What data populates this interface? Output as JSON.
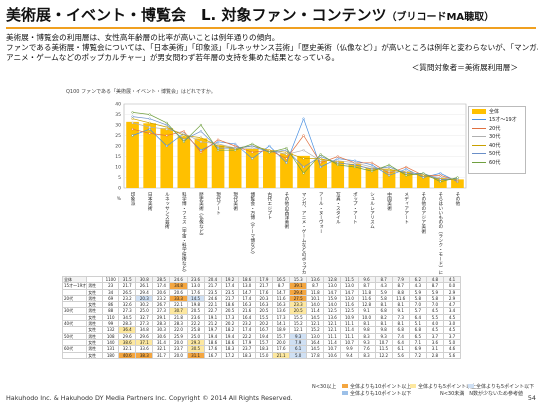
{
  "header": {
    "title": "美術展・イベント・博覧会　L. 対象ファン・コンテンツ",
    "subtitle": "（ブリコードMA聴取）"
  },
  "lead": {
    "line1": "美術展・博覧会の利用層は、女性高年齢層の比率が高いことは例年通りの傾向。",
    "line2": "ファンである美術展・博覧会については、「日本美術」「印象派」「ルネッサンス芸術」「歴史美術（仏像など）」が高いところは例年と変わらないが、「マンガ、",
    "line3": "アニメ・ゲームなどのポップカルチャー」が男女問わず若年層の支持を集めた結果となっている。",
    "respondent": "＜質問対象者＝美術展利用層＞"
  },
  "question": "Q100 ファンである「美術展・イベント・博覧会」はどれですか。",
  "chart_data": {
    "type": "bar",
    "ylim": [
      0,
      40
    ],
    "yticks": [
      0,
      5,
      10,
      15,
      20,
      25,
      30,
      35,
      40
    ],
    "unit": "%",
    "categories": [
      "印象派",
      "日本美術",
      "ルネッサンス芸術",
      "科学博・フェス（宇宙・科学技術など）",
      "歴史美術（仏像など）",
      "現代アート",
      "現代美術",
      "博覧会・万博（テーマ博など）",
      "古代エジプト",
      "その他の西洋美術",
      "マンガ、アニメ・ゲームなどのポップカルチャー",
      "アール・ヌーヴォー",
      "写真・スタイル",
      "ポップ・アート",
      "シュルレアリスム",
      "中国美術",
      "メディアアート",
      "その他のアジア美術",
      "そらはいいものの（ランク・モード）に関する",
      "その他"
    ],
    "bar_series": {
      "name": "全体",
      "values": [
        31.5,
        30.8,
        28.5,
        24.6,
        23.6,
        20.4,
        19.2,
        18.6,
        17.9,
        16.5,
        15.3,
        13.6,
        12.8,
        11.5,
        9.6,
        8.7,
        7.9,
        6.2,
        4.8,
        4.1
      ]
    },
    "line_series": [
      {
        "name": "15才〜19才",
        "color": "#4a90e2",
        "values": [
          25.0,
          28.0,
          20.0,
          26.0,
          18.0,
          22.0,
          21.0,
          14.0,
          20.0,
          12.0,
          33.0,
          10.0,
          14.0,
          13.0,
          11.0,
          6.0,
          9.0,
          5.0,
          7.0,
          3.0
        ]
      },
      {
        "name": "20代",
        "color": "#e07040",
        "values": [
          28.0,
          26.0,
          25.0,
          27.0,
          17.0,
          23.0,
          20.0,
          17.0,
          18.0,
          14.0,
          25.0,
          12.0,
          15.0,
          12.0,
          12.0,
          7.0,
          10.0,
          6.0,
          6.0,
          3.5
        ]
      },
      {
        "name": "30代",
        "color": "#b0b0b0",
        "values": [
          31.0,
          29.0,
          28.0,
          26.0,
          22.0,
          21.0,
          19.0,
          19.0,
          18.0,
          16.0,
          18.0,
          13.0,
          13.0,
          12.0,
          10.0,
          8.0,
          8.0,
          6.0,
          5.0,
          4.0
        ]
      },
      {
        "name": "40代",
        "color": "#c8a000",
        "values": [
          33.0,
          31.0,
          29.0,
          25.0,
          24.0,
          20.0,
          19.0,
          20.0,
          18.0,
          17.0,
          14.0,
          14.0,
          12.0,
          11.0,
          9.0,
          9.0,
          7.0,
          6.0,
          4.0,
          4.0
        ]
      },
      {
        "name": "50代",
        "color": "#6a8fc8",
        "values": [
          34.0,
          33.0,
          30.0,
          23.0,
          27.0,
          19.0,
          19.0,
          20.0,
          17.0,
          18.0,
          10.0,
          15.0,
          12.0,
          11.0,
          9.0,
          10.0,
          7.0,
          7.0,
          4.0,
          4.5
        ]
      },
      {
        "name": "60代",
        "color": "#70a040",
        "values": [
          36.0,
          35.0,
          31.0,
          22.0,
          30.0,
          18.0,
          18.0,
          21.0,
          17.0,
          19.0,
          7.0,
          16.0,
          11.0,
          10.0,
          8.0,
          11.0,
          6.0,
          7.0,
          3.0,
          5.0
        ]
      }
    ]
  },
  "matrix": {
    "header": [
      "n",
      "印象派",
      "日本美術",
      "ルネ",
      "科学博",
      "歴史美術",
      "現代アート",
      "現代美術",
      "博覧会",
      "古代エジ",
      "その他西洋",
      "マンガ",
      "ヌーヴォー",
      "写真",
      "ポップ",
      "シュル",
      "中国",
      "メディア",
      "アジア",
      "ランク",
      "その他"
    ],
    "rows": [
      {
        "group": "全体",
        "sub": "",
        "n": "1100",
        "v": [
          "31.5",
          "30.8",
          "28.5",
          "24.6",
          "23.6",
          "20.4",
          "19.2",
          "18.6",
          "17.9",
          "16.5",
          "15.3",
          "13.6",
          "12.8",
          "11.5",
          "9.6",
          "8.7",
          "7.9",
          "6.2",
          "4.8",
          "4.1"
        ],
        "h": [
          "",
          "",
          "",
          "",
          "",
          "",
          "",
          "",
          "",
          "",
          "",
          "",
          "",
          "",
          "",
          "",
          "",
          "",
          "",
          ""
        ]
      },
      {
        "group": "15才〜19才",
        "sub": "男性",
        "n": "23",
        "v": [
          "21.7",
          "26.1",
          "17.4",
          "34.8",
          "13.0",
          "21.7",
          "17.4",
          "13.0",
          "21.7",
          "8.7",
          "39.1",
          "8.7",
          "13.0",
          "13.0",
          "8.7",
          "4.3",
          "8.7",
          "4.3",
          "8.7",
          "0.0"
        ],
        "h": [
          "",
          "",
          "",
          "o",
          "",
          "",
          "",
          "",
          "",
          "",
          "o",
          "",
          "",
          "",
          "",
          "",
          "",
          "",
          "",
          ""
        ]
      },
      {
        "group": "",
        "sub": "女性",
        "n": "34",
        "v": [
          "26.5",
          "29.4",
          "20.6",
          "20.6",
          "17.6",
          "23.5",
          "23.5",
          "14.7",
          "17.6",
          "14.7",
          "29.4",
          "11.8",
          "14.7",
          "14.7",
          "11.8",
          "5.9",
          "8.8",
          "5.9",
          "5.9",
          "2.9"
        ],
        "h": [
          "",
          "",
          "",
          "",
          "",
          "",
          "",
          "",
          "",
          "",
          "o",
          "",
          "",
          "",
          "",
          "",
          "",
          "",
          "",
          ""
        ]
      },
      {
        "group": "20代",
        "sub": "男性",
        "n": "69",
        "v": [
          "23.2",
          "20.3",
          "23.2",
          "33.3",
          "14.5",
          "24.6",
          "21.7",
          "17.4",
          "20.3",
          "11.6",
          "27.5",
          "10.1",
          "15.9",
          "13.0",
          "11.6",
          "5.8",
          "11.6",
          "5.8",
          "5.8",
          "2.9"
        ],
        "h": [
          "",
          "b",
          "",
          "o",
          "b",
          "",
          "",
          "",
          "",
          "",
          "o",
          "",
          "",
          "",
          "",
          "",
          "",
          "",
          "",
          ""
        ]
      },
      {
        "group": "",
        "sub": "女性",
        "n": "86",
        "v": [
          "32.6",
          "30.2",
          "26.7",
          "22.1",
          "19.8",
          "22.1",
          "18.6",
          "16.3",
          "16.3",
          "16.3",
          "23.3",
          "14.0",
          "14.0",
          "11.6",
          "12.8",
          "8.1",
          "8.1",
          "7.0",
          "7.0",
          "4.7"
        ],
        "h": [
          "",
          "",
          "",
          "",
          "",
          "",
          "",
          "",
          "",
          "",
          "y",
          "",
          "",
          "",
          "",
          "",
          "",
          "",
          "",
          ""
        ]
      },
      {
        "group": "30代",
        "sub": "男性",
        "n": "88",
        "v": [
          "27.3",
          "25.0",
          "27.3",
          "30.7",
          "20.5",
          "22.7",
          "20.5",
          "21.6",
          "20.5",
          "13.6",
          "20.5",
          "11.4",
          "12.5",
          "12.5",
          "9.1",
          "6.8",
          "9.1",
          "5.7",
          "4.5",
          "3.4"
        ],
        "h": [
          "",
          "",
          "",
          "y",
          "",
          "",
          "",
          "",
          "",
          "",
          "y",
          "",
          "",
          "",
          "",
          "",
          "",
          "",
          "",
          ""
        ]
      },
      {
        "group": "",
        "sub": "女性",
        "n": "110",
        "v": [
          "34.5",
          "32.7",
          "29.1",
          "21.8",
          "23.6",
          "19.1",
          "17.3",
          "16.4",
          "15.5",
          "17.3",
          "15.5",
          "14.5",
          "13.6",
          "10.9",
          "10.0",
          "8.2",
          "7.3",
          "6.4",
          "5.5",
          "4.5"
        ],
        "h": [
          "",
          "",
          "",
          "",
          "",
          "",
          "",
          "",
          "",
          "",
          "",
          "",
          "",
          "",
          "",
          "",
          "",
          "",
          "",
          ""
        ]
      },
      {
        "group": "40代",
        "sub": "男性",
        "n": "99",
        "v": [
          "28.3",
          "27.3",
          "28.3",
          "28.3",
          "22.2",
          "21.2",
          "20.2",
          "23.2",
          "20.2",
          "14.1",
          "15.2",
          "12.1",
          "12.1",
          "11.1",
          "8.1",
          "8.1",
          "8.1",
          "5.1",
          "4.0",
          "3.0"
        ],
        "h": [
          "",
          "",
          "",
          "",
          "",
          "",
          "",
          "",
          "",
          "",
          "",
          "",
          "",
          "",
          "",
          "",
          "",
          "",
          "",
          ""
        ]
      },
      {
        "group": "",
        "sub": "女性",
        "n": "132",
        "v": [
          "36.4",
          "34.8",
          "30.3",
          "22.0",
          "25.8",
          "19.7",
          "18.2",
          "17.4",
          "16.7",
          "18.9",
          "12.1",
          "15.2",
          "12.1",
          "11.4",
          "9.8",
          "9.8",
          "6.8",
          "6.8",
          "4.5",
          "4.5"
        ],
        "h": [
          "y",
          "",
          "",
          "",
          "",
          "",
          "",
          "",
          "",
          "",
          "",
          "",
          "",
          "",
          "",
          "",
          "",
          "",
          "",
          ""
        ]
      },
      {
        "group": "50代",
        "sub": "男性",
        "n": "108",
        "v": [
          "29.6",
          "29.6",
          "30.6",
          "25.9",
          "25.0",
          "19.4",
          "19.4",
          "22.2",
          "19.4",
          "15.7",
          "9.3",
          "13.0",
          "11.1",
          "11.1",
          "8.3",
          "9.3",
          "7.4",
          "6.5",
          "3.7",
          "3.7"
        ],
        "h": [
          "",
          "",
          "",
          "",
          "",
          "",
          "",
          "",
          "",
          "",
          "b",
          "",
          "",
          "",
          "",
          "",
          "",
          "",
          "",
          ""
        ]
      },
      {
        "group": "",
        "sub": "女性",
        "n": "140",
        "v": [
          "38.6",
          "37.1",
          "31.4",
          "20.0",
          "29.3",
          "18.6",
          "18.6",
          "17.9",
          "15.7",
          "20.0",
          "7.9",
          "16.4",
          "11.4",
          "10.7",
          "9.3",
          "10.7",
          "6.4",
          "7.1",
          "3.6",
          "5.0"
        ],
        "h": [
          "y",
          "y",
          "",
          "",
          "y",
          "",
          "",
          "",
          "",
          "",
          "b",
          "",
          "",
          "",
          "",
          "",
          "",
          "",
          "",
          ""
        ]
      },
      {
        "group": "60代",
        "sub": "男性",
        "n": "131",
        "v": [
          "32.1",
          "33.6",
          "32.1",
          "23.7",
          "30.5",
          "17.6",
          "18.3",
          "23.7",
          "18.3",
          "17.6",
          "6.1",
          "14.5",
          "10.7",
          "9.9",
          "7.6",
          "11.5",
          "6.1",
          "6.9",
          "3.1",
          "4.6"
        ],
        "h": [
          "",
          "",
          "",
          "",
          "y",
          "",
          "",
          "",
          "",
          "",
          "b",
          "",
          "",
          "",
          "",
          "",
          "",
          "",
          "",
          ""
        ]
      },
      {
        "group": "",
        "sub": "女性",
        "n": "180",
        "v": [
          "40.6",
          "38.3",
          "31.7",
          "20.0",
          "31.1",
          "16.7",
          "17.2",
          "18.3",
          "15.0",
          "21.1",
          "5.0",
          "17.8",
          "10.6",
          "9.4",
          "8.3",
          "12.2",
          "5.6",
          "7.2",
          "2.8",
          "5.6"
        ],
        "h": [
          "o",
          "o",
          "",
          "",
          "o",
          "",
          "",
          "",
          "",
          "y",
          "b",
          "",
          "",
          "",
          "",
          "",
          "",
          "",
          "",
          ""
        ]
      }
    ]
  },
  "notes": {
    "n30": "N<30以上",
    "plus10": "全体よりも10ポイント以上",
    "plus5": "全体よりも5ポイント以上",
    "minus5": "全体よりも5ポイント以下",
    "minus10": "全体よりも10ポイント以下",
    "n_note": "N<30未満　N数が少ないため参考値",
    "colors": {
      "plus10": "#f4a640",
      "plus5": "#fde8a0",
      "minus5": "#cfe0f4",
      "minus10": "#9cc0e8"
    }
  },
  "footer": {
    "copyright": "Hakuhodo Inc. & Hakuhodo DY Media Partners Inc. Copyright © 2014 All Rights Reserved.",
    "page": "54"
  }
}
